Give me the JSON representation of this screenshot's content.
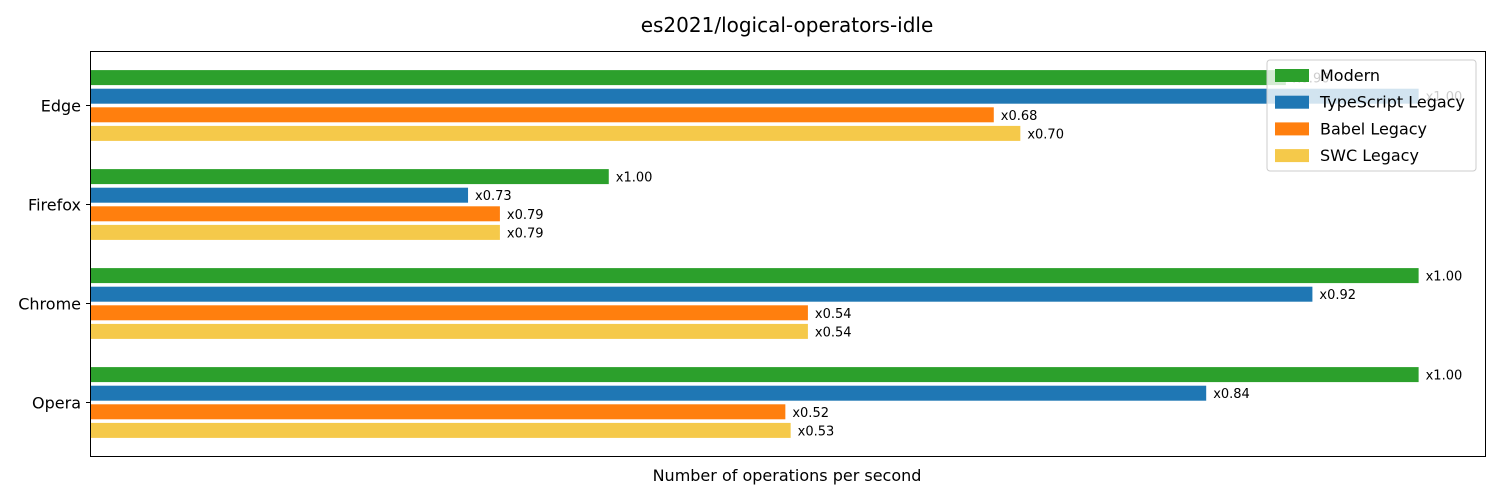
{
  "chart_data": {
    "type": "bar",
    "orientation": "horizontal",
    "title": "es2021/logical-operators-idle",
    "xlabel": "Number of operations per second",
    "ylabel": "",
    "xlim": [
      0,
      1.05
    ],
    "legend_placement": "top-right",
    "grid": false,
    "categories": [
      "Edge",
      "Firefox",
      "Chrome",
      "Opera"
    ],
    "series": [
      {
        "name": "Modern",
        "color": "#2ca02c",
        "values": [
          0.9,
          0.39,
          1.0,
          1.0
        ],
        "labels": [
          "x0.90",
          "x1.00",
          "x1.00",
          "x1.00"
        ]
      },
      {
        "name": "TypeScript Legacy",
        "color": "#1f77b4",
        "values": [
          1.0,
          0.284,
          0.92,
          0.84
        ],
        "labels": [
          "x1.00",
          "x0.73",
          "x0.92",
          "x0.84"
        ]
      },
      {
        "name": "Babel Legacy",
        "color": "#ff7f0e",
        "values": [
          0.68,
          0.308,
          0.54,
          0.523
        ],
        "labels": [
          "x0.68",
          "x0.79",
          "x0.54",
          "x0.52"
        ]
      },
      {
        "name": "SWC Legacy",
        "color": "#f5c94a",
        "values": [
          0.7,
          0.308,
          0.54,
          0.527
        ],
        "labels": [
          "x0.70",
          "x0.79",
          "x0.54",
          "x0.53"
        ]
      }
    ]
  }
}
